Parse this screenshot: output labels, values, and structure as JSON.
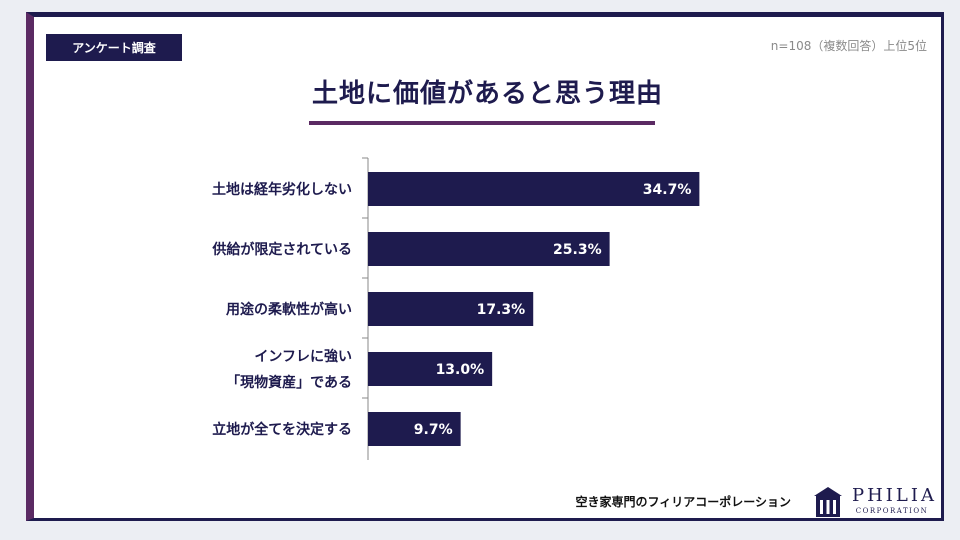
{
  "header": {
    "tag": "アンケート調査",
    "sample_note": "n=108（複数回答）上位5位",
    "title": "土地に価値があると思う理由"
  },
  "chart_data": {
    "type": "bar",
    "orientation": "horizontal",
    "categories": [
      [
        "土地は経年劣化しない"
      ],
      [
        "供給が限定されている"
      ],
      [
        "用途の柔軟性が高い"
      ],
      [
        "インフレに強い",
        "「現物資産」である"
      ],
      [
        "立地が全てを決定する"
      ]
    ],
    "values": [
      34.7,
      25.3,
      17.3,
      13.0,
      9.7
    ],
    "value_labels": [
      "34.7%",
      "25.3%",
      "17.3%",
      "13.0%",
      "9.7%"
    ],
    "unit": "%",
    "bar_color": "#1e1b4e"
  },
  "footer": {
    "company_text": "空き家専門のフィリアコーポレーション",
    "brand_name": "PHILIA",
    "brand_sub": "CORPORATION"
  },
  "colors": {
    "navy": "#1e1b4e",
    "purple": "#5b2a63"
  }
}
